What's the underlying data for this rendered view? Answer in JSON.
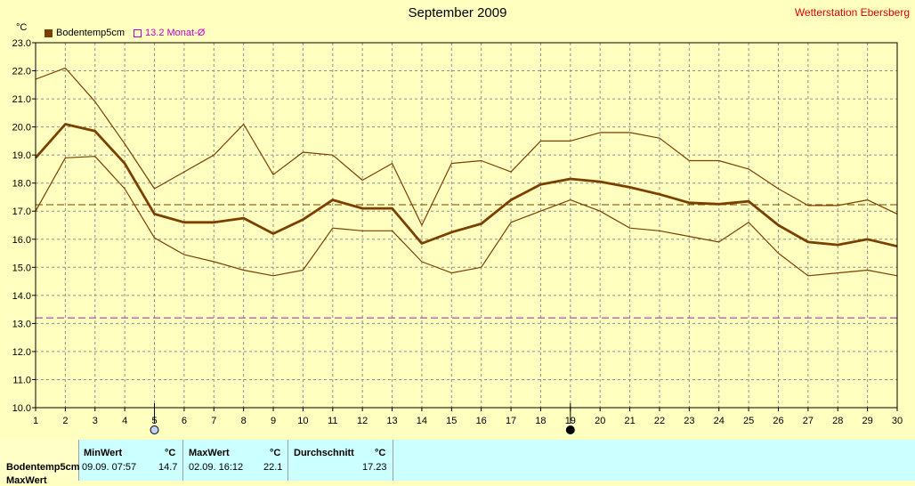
{
  "header": {
    "title": "September 2009",
    "station": "Wetterstation Ebersberg",
    "unit": "°C"
  },
  "legend": {
    "series_label": "Bodentemp5cm",
    "avg_label": "13.2 Monat-Ø"
  },
  "colors": {
    "background": "#ffffc0",
    "series": "#7b3f00",
    "avg_line": "#a020a0",
    "panel": "#ccffff",
    "station": "#e00000"
  },
  "chart_data": {
    "type": "line",
    "x": [
      1,
      2,
      3,
      4,
      5,
      6,
      7,
      8,
      9,
      10,
      11,
      12,
      13,
      14,
      15,
      16,
      17,
      18,
      19,
      20,
      21,
      22,
      23,
      24,
      25,
      26,
      27,
      28,
      29,
      30
    ],
    "series": [
      {
        "role": "max",
        "values": [
          21.7,
          22.1,
          20.9,
          19.4,
          17.8,
          18.4,
          19.0,
          20.1,
          18.3,
          19.1,
          19.0,
          18.1,
          18.7,
          16.5,
          18.7,
          18.8,
          18.4,
          19.5,
          19.5,
          19.8,
          19.8,
          19.6,
          18.8,
          18.8,
          18.5,
          17.8,
          17.2,
          17.2,
          17.4,
          16.9
        ]
      },
      {
        "role": "mean",
        "values": [
          18.9,
          20.1,
          19.85,
          18.7,
          16.9,
          16.6,
          16.6,
          16.75,
          16.2,
          16.7,
          17.4,
          17.1,
          17.1,
          15.85,
          16.25,
          16.55,
          17.4,
          17.95,
          18.15,
          18.05,
          17.85,
          17.6,
          17.3,
          17.25,
          17.35,
          16.5,
          15.9,
          15.8,
          16.0,
          15.75
        ]
      },
      {
        "role": "min",
        "values": [
          17.0,
          18.9,
          18.95,
          17.8,
          16.05,
          15.45,
          15.2,
          14.9,
          14.7,
          14.9,
          16.4,
          16.3,
          16.3,
          15.2,
          14.8,
          15.0,
          16.6,
          17.0,
          17.4,
          17.0,
          16.4,
          16.3,
          16.1,
          15.9,
          16.6,
          15.5,
          14.7,
          14.8,
          14.9,
          14.7
        ]
      }
    ],
    "reference_lines": [
      {
        "name": "Durchschnitt",
        "value": 17.23
      },
      {
        "name": "Monat-Ø",
        "value": 13.2
      }
    ],
    "ylim": [
      10.0,
      23.0
    ],
    "xlim": [
      1,
      30
    ],
    "y_ticks": [
      "10.0",
      "11.0",
      "12.0",
      "13.0",
      "14.0",
      "15.0",
      "16.0",
      "17.0",
      "18.0",
      "19.0",
      "20.0",
      "21.0",
      "22.0",
      "23.0"
    ],
    "x_ticks": [
      "1",
      "2",
      "3",
      "4",
      "5",
      "6",
      "7",
      "8",
      "9",
      "10",
      "11",
      "12",
      "13",
      "14",
      "15",
      "16",
      "17",
      "18",
      "19",
      "20",
      "21",
      "22",
      "23",
      "24",
      "25",
      "26",
      "27",
      "28",
      "29",
      "30"
    ],
    "moon_phases": [
      {
        "day": 5,
        "phase": "full-moon"
      },
      {
        "day": 19,
        "phase": "new-moon"
      }
    ],
    "grid": true
  },
  "stats": {
    "row_label": "Bodentemp5cm",
    "row2_label": "MaxWert",
    "min_header": "MinWert",
    "max_header": "MaxWert",
    "avg_header": "Durchschnitt",
    "unit": "°C",
    "min_time": "09.09.  07:57",
    "min_value": "14.7",
    "max_time": "02.09.  16:12",
    "max_value": "22.1",
    "avg_value": "17.23"
  }
}
